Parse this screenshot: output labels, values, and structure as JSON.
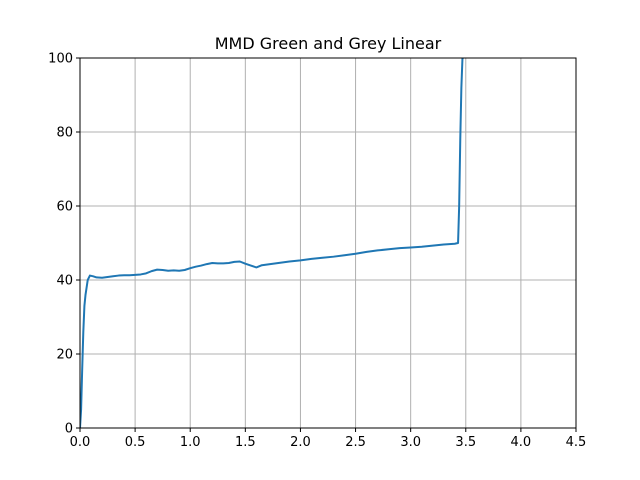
{
  "chart_data": {
    "type": "line",
    "title": "MMD Green and Grey Linear",
    "xlabel": "",
    "ylabel": "",
    "xlim": [
      0.0,
      4.5
    ],
    "ylim": [
      0,
      100
    ],
    "grid": true,
    "x_ticks": [
      "0.0",
      "0.5",
      "1.0",
      "1.5",
      "2.0",
      "2.5",
      "3.0",
      "3.5",
      "4.0",
      "4.5"
    ],
    "y_ticks": [
      "0",
      "20",
      "40",
      "60",
      "80",
      "100"
    ],
    "series": [
      {
        "color": "#1f77b4",
        "x": [
          0.0,
          0.01,
          0.02,
          0.03,
          0.04,
          0.05,
          0.07,
          0.09,
          0.12,
          0.15,
          0.2,
          0.25,
          0.3,
          0.35,
          0.4,
          0.45,
          0.5,
          0.55,
          0.6,
          0.65,
          0.7,
          0.75,
          0.8,
          0.85,
          0.9,
          0.95,
          1.0,
          1.05,
          1.1,
          1.15,
          1.2,
          1.25,
          1.3,
          1.35,
          1.4,
          1.45,
          1.5,
          1.55,
          1.6,
          1.65,
          1.7,
          1.8,
          1.9,
          2.0,
          2.1,
          2.2,
          2.3,
          2.4,
          2.5,
          2.6,
          2.7,
          2.8,
          2.9,
          3.0,
          3.1,
          3.2,
          3.3,
          3.4,
          3.43,
          3.44,
          3.45,
          3.46,
          3.47,
          3.475
        ],
        "y": [
          0,
          5,
          16,
          26,
          33,
          36,
          40,
          41.2,
          41.0,
          40.7,
          40.6,
          40.8,
          41.0,
          41.2,
          41.3,
          41.3,
          41.4,
          41.5,
          41.8,
          42.4,
          42.8,
          42.7,
          42.5,
          42.6,
          42.5,
          42.7,
          43.2,
          43.6,
          43.9,
          44.3,
          44.6,
          44.5,
          44.5,
          44.6,
          44.9,
          45.0,
          44.4,
          43.9,
          43.4,
          44.0,
          44.2,
          44.6,
          45.0,
          45.3,
          45.7,
          46.0,
          46.3,
          46.7,
          47.1,
          47.6,
          48.0,
          48.3,
          48.6,
          48.8,
          49.0,
          49.3,
          49.6,
          49.8,
          50.0,
          60,
          78,
          92,
          100,
          100
        ]
      }
    ]
  }
}
